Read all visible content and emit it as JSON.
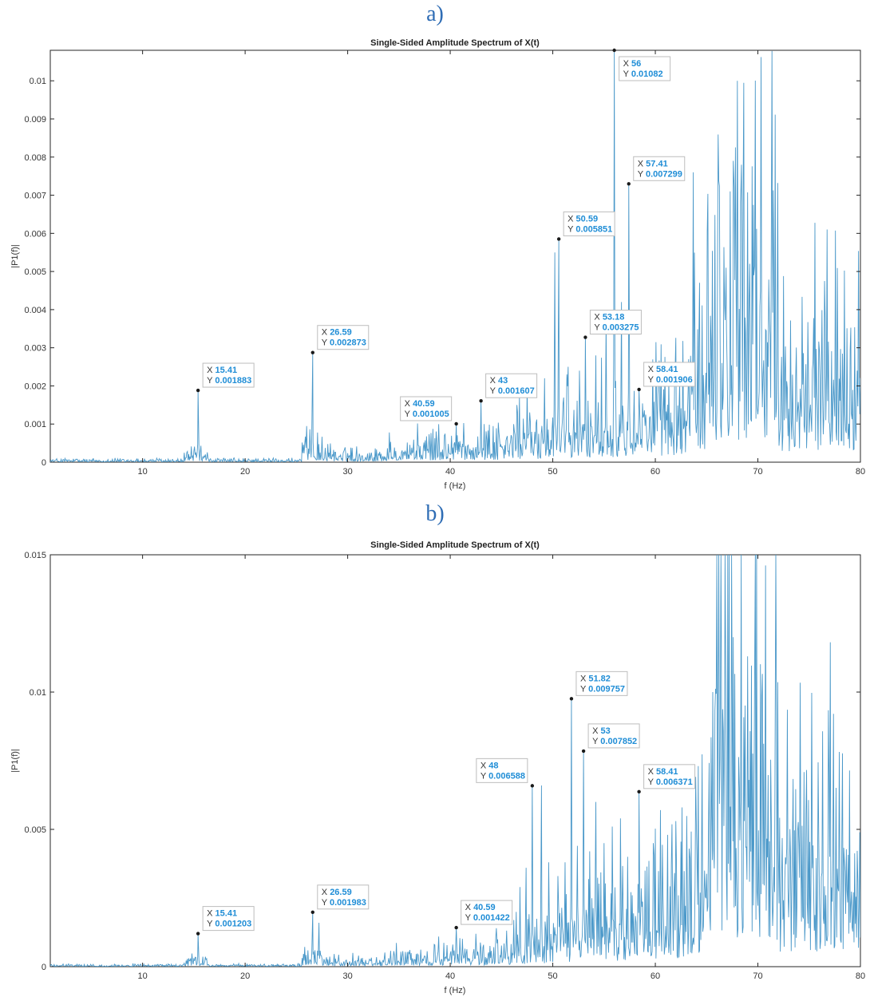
{
  "chart_data": [
    {
      "type": "line",
      "panel_label": "a)",
      "title": "Single-Sided Amplitude Spectrum of X(t)",
      "xlabel": "f (Hz)",
      "ylabel": "|P1(f)|",
      "xlim": [
        1,
        80
      ],
      "ylim": [
        0,
        0.0108
      ],
      "xticks": [
        10,
        20,
        30,
        40,
        50,
        60,
        70,
        80
      ],
      "yticks": [
        0,
        0.001,
        0.002,
        0.003,
        0.004,
        0.005,
        0.006,
        0.007,
        0.008,
        0.009,
        0.01
      ],
      "ytick_labels": [
        "0",
        "0.001",
        "0.002",
        "0.003",
        "0.004",
        "0.005",
        "0.006",
        "0.007",
        "0.008",
        "0.009",
        "0.01"
      ],
      "grid": false,
      "line_color": "#4a98c9",
      "series": [
        {
          "peaks": [
            [
              15.41,
              0.001883
            ],
            [
              26.59,
              0.002873
            ],
            [
              40.59,
              0.001005
            ],
            [
              43,
              0.001607
            ],
            [
              46.5,
              0.0015
            ],
            [
              47.5,
              0.0019
            ],
            [
              49.2,
              0.0022
            ],
            [
              50.2,
              0.0055
            ],
            [
              50.59,
              0.005851
            ],
            [
              51.5,
              0.0025
            ],
            [
              52.6,
              0.0024
            ],
            [
              53.18,
              0.003275
            ],
            [
              54.2,
              0.0028
            ],
            [
              55.2,
              0.0037
            ],
            [
              56,
              0.01082
            ],
            [
              56.7,
              0.0042
            ],
            [
              57.41,
              0.007299
            ],
            [
              58.41,
              0.001906
            ],
            [
              59.5,
              0.0012
            ],
            [
              60.5,
              0.0011
            ],
            [
              61.5,
              0.0013
            ],
            [
              62.3,
              0.0012
            ],
            [
              63.2,
              0.0019
            ],
            [
              63.7,
              0.0076
            ],
            [
              64.5,
              0.0012
            ],
            [
              66.5,
              0.0026
            ],
            [
              66.9,
              0.0051
            ],
            [
              67.3,
              0.0071
            ],
            [
              67.6,
              0.0079
            ],
            [
              68,
              0.01
            ],
            [
              68.4,
              0.0078
            ],
            [
              68.8,
              0.0034
            ],
            [
              69.2,
              0.0052
            ],
            [
              69.6,
              0.0049
            ],
            [
              70.2,
              0.0041
            ],
            [
              71,
              0.0025
            ],
            [
              72,
              0.0018
            ],
            [
              73,
              0.0014
            ],
            [
              74,
              0.0013
            ],
            [
              76.8,
              0.0016
            ],
            [
              77.5,
              0.0012
            ],
            [
              78.3,
              0.0022
            ],
            [
              79.1,
              0.0013
            ]
          ]
        }
      ],
      "datatips": [
        {
          "x": "15.41",
          "y": "0.001883"
        },
        {
          "x": "26.59",
          "y": "0.002873"
        },
        {
          "x": "40.59",
          "y": "0.001005"
        },
        {
          "x": "43",
          "y": "0.001607"
        },
        {
          "x": "50.59",
          "y": "0.005851"
        },
        {
          "x": "53.18",
          "y": "0.003275"
        },
        {
          "x": "56",
          "y": "0.01082"
        },
        {
          "x": "57.41",
          "y": "0.007299"
        },
        {
          "x": "58.41",
          "y": "0.001906"
        }
      ]
    },
    {
      "type": "line",
      "panel_label": "b)",
      "title": "Single-Sided Amplitude Spectrum of X(t)",
      "xlabel": "f (Hz)",
      "ylabel": "|P1(f)|",
      "xlim": [
        1,
        80
      ],
      "ylim": [
        0,
        0.015
      ],
      "xticks": [
        10,
        20,
        30,
        40,
        50,
        60,
        70,
        80
      ],
      "yticks": [
        0,
        0.005,
        0.01,
        0.015
      ],
      "ytick_labels": [
        "0",
        "0.005",
        "0.01",
        "0.015"
      ],
      "grid": false,
      "line_color": "#4a98c9",
      "series": [
        {
          "peaks": [
            [
              15.41,
              0.001203
            ],
            [
              26.59,
              0.001983
            ],
            [
              27.2,
              0.0016
            ],
            [
              40.59,
              0.001422
            ],
            [
              42.5,
              0.0012
            ],
            [
              44.5,
              0.0014
            ],
            [
              46.2,
              0.0017
            ],
            [
              46.8,
              0.0029
            ],
            [
              47.4,
              0.0036
            ],
            [
              48,
              0.006588
            ],
            [
              48.9,
              0.0066
            ],
            [
              49.6,
              0.0038
            ],
            [
              50.5,
              0.0033
            ],
            [
              51.2,
              0.0038
            ],
            [
              51.82,
              0.009757
            ],
            [
              52.4,
              0.0044
            ],
            [
              53,
              0.007852
            ],
            [
              53.6,
              0.0042
            ],
            [
              54.2,
              0.006
            ],
            [
              55,
              0.0045
            ],
            [
              55.8,
              0.0051
            ],
            [
              56.6,
              0.0054
            ],
            [
              57.3,
              0.004
            ],
            [
              58.41,
              0.006371
            ],
            [
              59,
              0.0035
            ],
            [
              59.8,
              0.0045
            ],
            [
              60.5,
              0.0057
            ],
            [
              61.2,
              0.0048
            ],
            [
              62,
              0.0053
            ],
            [
              62.6,
              0.0058
            ],
            [
              63.3,
              0.0043
            ],
            [
              64,
              0.0052
            ],
            [
              64.8,
              0.0035
            ],
            [
              65.6,
              0.01
            ],
            [
              66,
              0.015
            ],
            [
              66.4,
              0.015
            ],
            [
              66.8,
              0.015
            ],
            [
              67.2,
              0.015
            ],
            [
              67.6,
              0.012
            ],
            [
              68.2,
              0.0065
            ],
            [
              69,
              0.0113
            ],
            [
              69.6,
              0.004
            ],
            [
              70.5,
              0.003
            ],
            [
              71.5,
              0.0022
            ],
            [
              73,
              0.0018
            ],
            [
              75,
              0.0014
            ],
            [
              78,
              0.0028
            ],
            [
              79,
              0.0016
            ]
          ]
        }
      ],
      "datatips": [
        {
          "x": "15.41",
          "y": "0.001203"
        },
        {
          "x": "26.59",
          "y": "0.001983"
        },
        {
          "x": "40.59",
          "y": "0.001422"
        },
        {
          "x": "48",
          "y": "0.006588"
        },
        {
          "x": "51.82",
          "y": "0.009757"
        },
        {
          "x": "53",
          "y": "0.007852"
        },
        {
          "x": "58.41",
          "y": "0.006371"
        }
      ]
    }
  ]
}
